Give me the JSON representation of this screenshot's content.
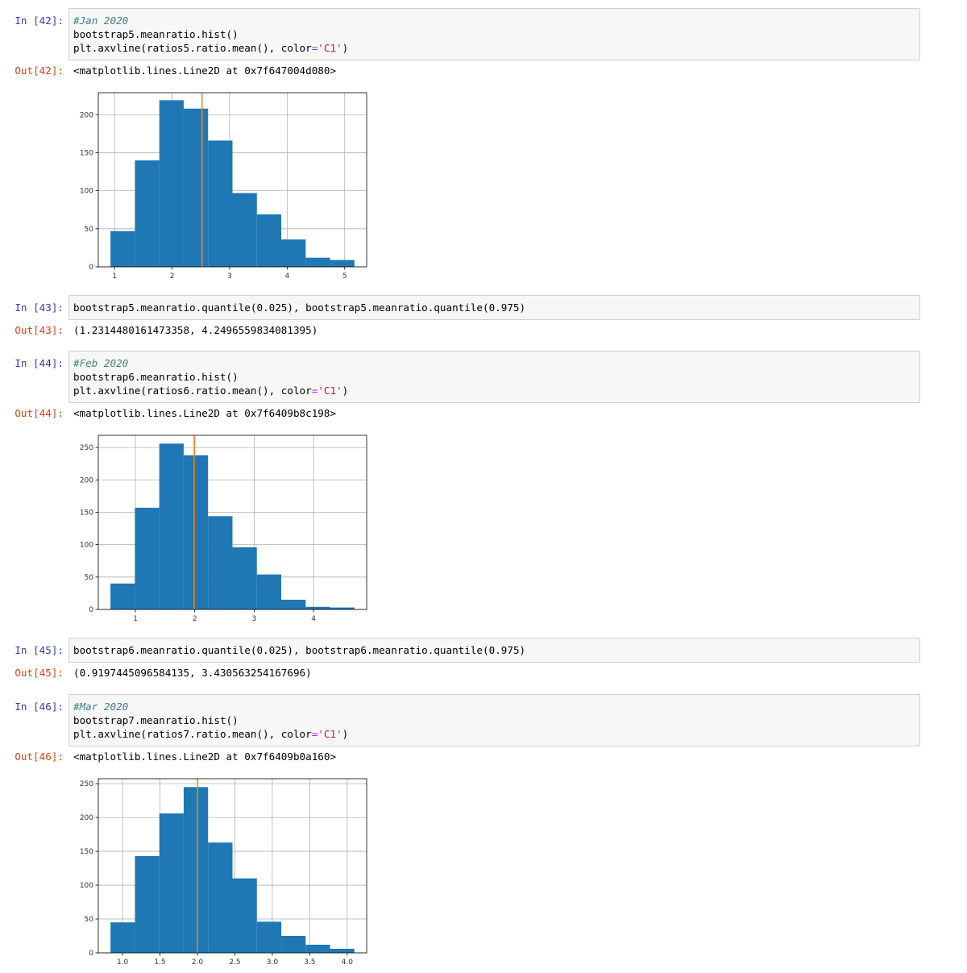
{
  "cells": [
    {
      "prompt_in": "In [42]:",
      "code": [
        [
          "#Jan 2020"
        ],
        [
          "bootstrap5.meanratio.hist()"
        ],
        [
          "plt.axvline(ratios5.ratio.mean(), color",
          "=",
          "'C1'",
          ")"
        ]
      ],
      "prompt_out": "Out[42]:",
      "output": "<matplotlib.lines.Line2D at 0x7f647004d080>"
    },
    {
      "prompt_in": "In [43]:",
      "code": [
        [
          "bootstrap5.meanratio.quantile(0.025), bootstrap5.meanratio.quantile(0.975)"
        ]
      ],
      "prompt_out": "Out[43]:",
      "output": "(1.2314480161473358, 4.2496559834081395)"
    },
    {
      "prompt_in": "In [44]:",
      "code": [
        [
          "#Feb 2020"
        ],
        [
          "bootstrap6.meanratio.hist()"
        ],
        [
          "plt.axvline(ratios6.ratio.mean(), color",
          "=",
          "'C1'",
          ")"
        ]
      ],
      "prompt_out": "Out[44]:",
      "output": "<matplotlib.lines.Line2D at 0x7f6409b8c198>"
    },
    {
      "prompt_in": "In [45]:",
      "code": [
        [
          "bootstrap6.meanratio.quantile(0.025), bootstrap6.meanratio.quantile(0.975)"
        ]
      ],
      "prompt_out": "Out[45]:",
      "output": "(0.9197445096584135, 3.430563254167696)"
    },
    {
      "prompt_in": "In [46]:",
      "code": [
        [
          "#Mar 2020"
        ],
        [
          "bootstrap7.meanratio.hist()"
        ],
        [
          "plt.axvline(ratios7.ratio.mean(), color",
          "=",
          "'C1'",
          ")"
        ]
      ],
      "prompt_out": "Out[46]:",
      "output": "<matplotlib.lines.Line2D at 0x7f6409b0a160>"
    }
  ],
  "chart_data": [
    {
      "type": "histogram",
      "color": "#1f77b4",
      "vline": 2.52,
      "vline_color": "#ff7f0e",
      "grid": true,
      "bins": [
        0.93,
        1.354,
        1.778,
        2.202,
        2.626,
        3.05,
        3.474,
        3.898,
        4.322,
        4.746,
        5.17
      ],
      "counts": [
        47,
        140,
        219,
        208,
        166,
        97,
        69,
        36,
        12,
        9
      ],
      "xlim": [
        0.718,
        5.382
      ],
      "ylim": [
        0,
        228.9
      ],
      "xticks": [
        1,
        2,
        3,
        4,
        5
      ],
      "yticks": [
        0,
        50,
        100,
        150,
        200
      ]
    },
    {
      "type": "histogram",
      "color": "#1f77b4",
      "vline": 1.99,
      "vline_color": "#ff7f0e",
      "grid": true,
      "bins": [
        0.579,
        0.99,
        1.401,
        1.812,
        2.223,
        2.634,
        3.045,
        3.456,
        3.867,
        4.278,
        4.689
      ],
      "counts": [
        40,
        157,
        256,
        238,
        144,
        96,
        54,
        15,
        4,
        3
      ],
      "xlim": [
        0.374,
        4.895
      ],
      "ylim": [
        0,
        268.8
      ],
      "xticks": [
        1,
        2,
        3,
        4
      ],
      "yticks": [
        0,
        50,
        100,
        150,
        200,
        250
      ]
    },
    {
      "type": "histogram",
      "color": "#1f77b4",
      "vline": 2.0,
      "vline_color": "#ff7f0e",
      "grid": true,
      "bins": [
        0.839,
        1.165,
        1.491,
        1.816,
        2.142,
        2.468,
        2.794,
        3.12,
        3.445,
        3.771,
        4.097
      ],
      "counts": [
        45,
        143,
        206,
        245,
        163,
        110,
        46,
        25,
        12,
        6
      ],
      "xlim": [
        0.676,
        4.26
      ],
      "ylim": [
        0,
        257.3
      ],
      "xticks": [
        {
          "value": 1,
          "label": "1.0"
        },
        1.5,
        {
          "value": 2,
          "label": "2.0"
        },
        2.5,
        {
          "value": 3,
          "label": "3.0"
        },
        3.5,
        {
          "value": 4,
          "label": "4.0"
        }
      ],
      "yticks": [
        0,
        50,
        100,
        150,
        200,
        250
      ]
    }
  ]
}
